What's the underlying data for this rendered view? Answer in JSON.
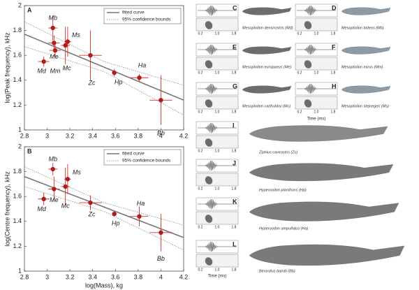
{
  "chart_data": [
    {
      "type": "scatter",
      "panel": "A",
      "ylabel": "log(Peak frequency), kHz",
      "legend": "upper right",
      "color": "#b01c1c",
      "error_color": "#d0302a",
      "xlim": [
        2.8,
        4.2
      ],
      "ylim": [
        1,
        2
      ],
      "xticks": [
        2.8,
        3,
        3.2,
        3.4,
        3.6,
        3.8,
        4,
        4.2
      ],
      "yticks": [
        1,
        1.2,
        1.4,
        1.6,
        1.8,
        2
      ],
      "categories": [
        "Md",
        "Mb",
        "Me",
        "Mm",
        "Mc",
        "Ms",
        "Zc",
        "Hp",
        "Ha",
        "Bb"
      ],
      "x": [
        2.97,
        3.05,
        3.06,
        3.07,
        3.16,
        3.18,
        3.38,
        3.59,
        3.81,
        4.0
      ],
      "values": [
        1.55,
        1.82,
        1.7,
        1.64,
        1.68,
        1.71,
        1.6,
        1.46,
        1.42,
        1.24
      ],
      "xerr": [
        0.05,
        0.04,
        0.05,
        0.05,
        0.04,
        0.03,
        0.1,
        0.02,
        0.08,
        0.1
      ],
      "yerr": [
        0.04,
        0.1,
        0.06,
        0.05,
        0.15,
        0.12,
        0.2,
        0.03,
        0.03,
        0.2
      ],
      "fit": {
        "name": "fitted curve",
        "color": "#777777",
        "x": [
          2.8,
          4.2
        ],
        "values": [
          1.77,
          1.24
        ]
      },
      "bounds": {
        "name": "95% confidence bounds",
        "color": "#888888",
        "x": [
          2.8,
          3.5,
          4.2
        ],
        "upper": [
          1.87,
          1.55,
          1.36
        ],
        "lower": [
          1.67,
          1.47,
          1.12
        ]
      }
    },
    {
      "type": "scatter",
      "panel": "B",
      "ylabel": "log(Centre frequency), kHz",
      "xlabel": "log(Mass), kg",
      "legend": "upper right",
      "color": "#b01c1c",
      "error_color": "#d0302a",
      "xlim": [
        2.8,
        4.2
      ],
      "ylim": [
        1,
        2
      ],
      "xticks": [
        2.8,
        3,
        3.2,
        3.4,
        3.6,
        3.8,
        4,
        4.2
      ],
      "yticks": [
        1,
        1.2,
        1.4,
        1.6,
        1.8,
        2
      ],
      "categories": [
        "Md",
        "Mb",
        "Me",
        "Mc",
        "Ms",
        "Zc",
        "Hp",
        "Ha",
        "Bb"
      ],
      "x": [
        2.97,
        3.05,
        3.06,
        3.16,
        3.18,
        3.38,
        3.59,
        3.81,
        4.0
      ],
      "values": [
        1.58,
        1.82,
        1.66,
        1.68,
        1.74,
        1.55,
        1.46,
        1.44,
        1.31
      ],
      "xerr": [
        0.05,
        0.04,
        0.05,
        0.04,
        0.03,
        0.1,
        0.02,
        0.08,
        0.1
      ],
      "yerr": [
        0.05,
        0.05,
        0.1,
        0.15,
        0.12,
        0.06,
        0.02,
        0.08,
        0.15
      ],
      "fit": {
        "name": "fitted curve",
        "color": "#777777",
        "x": [
          2.8,
          4.2
        ],
        "values": [
          1.76,
          1.27
        ]
      },
      "bounds": {
        "name": "95% confidence bounds",
        "color": "#888888",
        "x": [
          2.8,
          3.5,
          4.2
        ],
        "upper": [
          1.84,
          1.55,
          1.37
        ],
        "lower": [
          1.68,
          1.48,
          1.17
        ]
      }
    }
  ],
  "spectrograms": {
    "time_label": "Time (ms)",
    "time_ticks": [
      "0.2",
      "1.0",
      "1.8"
    ],
    "panels": [
      {
        "letter": "C",
        "species": "Mesoplodon densirostris (Md)"
      },
      {
        "letter": "D",
        "species": "Mesoplodon bidens (Mb)"
      },
      {
        "letter": "E",
        "species": "Mesoplodon europaeus (Me)"
      },
      {
        "letter": "F",
        "species": "Mesoplodon mirus (Mm)"
      },
      {
        "letter": "G",
        "species": "Mesoplodon carlhubbsi (Mc)"
      },
      {
        "letter": "H",
        "species": "Mesoplodon stejnegeri (Ms)"
      },
      {
        "letter": "I",
        "species": "Ziphius cavirostris (Zc)"
      },
      {
        "letter": "J",
        "species": "Hyperoodon planifrons (Hp)"
      },
      {
        "letter": "K",
        "species": "Hyperoodon ampullatus (Ha)"
      },
      {
        "letter": "L",
        "species": "Berardius bairdii (Bb)"
      }
    ]
  }
}
